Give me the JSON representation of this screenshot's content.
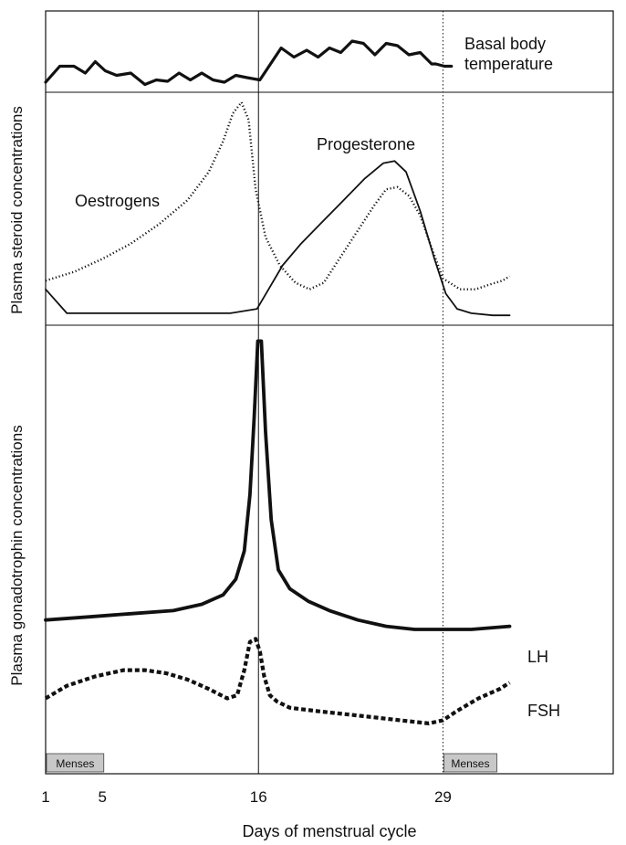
{
  "chart_data": [
    {
      "panel": "top",
      "type": "line",
      "series": [
        {
          "name": "Basal body temperature",
          "style": "solid",
          "x": [
            1,
            2,
            3,
            3.8,
            4.5,
            5.2,
            6,
            7,
            8,
            8.8,
            9.6,
            10.4,
            11.2,
            12,
            12.8,
            13.6,
            14.4,
            15.2,
            16.1,
            17.6,
            18.5,
            19.4,
            20.2,
            21,
            21.8,
            22.6,
            23.4,
            24.2,
            25,
            25.8,
            26.6,
            27.4,
            28.2,
            28.5,
            29.1,
            29.6
          ],
          "y": [
            0.1,
            0.45,
            0.45,
            0.3,
            0.55,
            0.35,
            0.25,
            0.3,
            0.05,
            0.15,
            0.12,
            0.3,
            0.15,
            0.3,
            0.15,
            0.1,
            0.25,
            0.2,
            0.15,
            0.85,
            0.65,
            0.8,
            0.65,
            0.85,
            0.75,
            1.0,
            0.95,
            0.7,
            0.95,
            0.9,
            0.7,
            0.75,
            0.5,
            0.5,
            0.45,
            0.45
          ]
        }
      ]
    },
    {
      "panel": "middle",
      "type": "line",
      "ylabel": "Plasma steroid concentrations",
      "series": [
        {
          "name": "Oestrogens",
          "style": "dotted",
          "x": [
            1,
            3,
            5,
            7,
            9,
            11,
            12.5,
            13.5,
            14.2,
            14.8,
            15.3,
            15.8,
            16.5,
            17.5,
            18.6,
            19.6,
            20.6,
            21.6,
            22.6,
            23.6,
            24.2,
            25,
            25.8,
            26.6,
            27.4,
            28.2,
            29.0,
            30.2,
            31.3,
            32.2,
            33.2,
            33.7
          ],
          "y": [
            0.18,
            0.22,
            0.28,
            0.35,
            0.44,
            0.55,
            0.68,
            0.82,
            0.95,
            1.0,
            0.92,
            0.6,
            0.38,
            0.25,
            0.17,
            0.14,
            0.17,
            0.27,
            0.37,
            0.47,
            0.53,
            0.6,
            0.61,
            0.57,
            0.48,
            0.33,
            0.19,
            0.14,
            0.14,
            0.16,
            0.18,
            0.2
          ]
        },
        {
          "name": "Progesterone",
          "style": "solid",
          "x": [
            1,
            2.5,
            4,
            8,
            14,
            15.9,
            16.8,
            17.7,
            19,
            20.5,
            22,
            23.5,
            24.8,
            25.6,
            26.4,
            27.4,
            28.4,
            29.2,
            30,
            31,
            32.5,
            33.7
          ],
          "y": [
            0.14,
            0.03,
            0.03,
            0.03,
            0.03,
            0.05,
            0.15,
            0.25,
            0.35,
            0.45,
            0.55,
            0.65,
            0.72,
            0.73,
            0.68,
            0.5,
            0.28,
            0.12,
            0.05,
            0.03,
            0.02,
            0.02
          ]
        }
      ]
    },
    {
      "panel": "bottom",
      "type": "line",
      "ylabel": "Plasma gonadotrophin concentrations",
      "xlabel": "Days of menstrual cycle",
      "xticks": [
        "1",
        "5",
        "16",
        "29"
      ],
      "xlim": [
        1,
        41
      ],
      "menses": [
        {
          "label": "Menses",
          "start": 1,
          "end": 5.1
        },
        {
          "label": "Menses",
          "start": 29,
          "end": 32.8
        }
      ],
      "series": [
        {
          "name": "LH",
          "style": "solid",
          "x": [
            1,
            4,
            7,
            10,
            12,
            13.5,
            14.4,
            15,
            15.4,
            15.7,
            15.95,
            16.2,
            16.5,
            16.9,
            17.4,
            18.2,
            19.5,
            21,
            23,
            25,
            27,
            29,
            31,
            33.7
          ],
          "y": [
            0.1,
            0.11,
            0.12,
            0.13,
            0.15,
            0.18,
            0.23,
            0.32,
            0.5,
            0.75,
            0.99,
            0.99,
            0.7,
            0.42,
            0.26,
            0.2,
            0.16,
            0.13,
            0.1,
            0.08,
            0.07,
            0.07,
            0.07,
            0.08
          ]
        },
        {
          "name": "FSH",
          "style": "dashed",
          "x": [
            1,
            2.5,
            4.5,
            6.5,
            8,
            9.5,
            11,
            12.5,
            13.8,
            14.5,
            15.0,
            15.4,
            15.8,
            16.1,
            16.4,
            16.8,
            17.3,
            18.2,
            20,
            22,
            24,
            26,
            28,
            29,
            30,
            31.5,
            33,
            33.7
          ],
          "y": [
            -0.15,
            -0.11,
            -0.08,
            -0.06,
            -0.06,
            -0.07,
            -0.09,
            -0.12,
            -0.15,
            -0.14,
            -0.06,
            0.03,
            0.04,
            0.0,
            -0.08,
            -0.14,
            -0.16,
            -0.18,
            -0.19,
            -0.2,
            -0.21,
            -0.22,
            -0.23,
            -0.22,
            -0.19,
            -0.15,
            -0.12,
            -0.1
          ]
        }
      ]
    }
  ]
}
